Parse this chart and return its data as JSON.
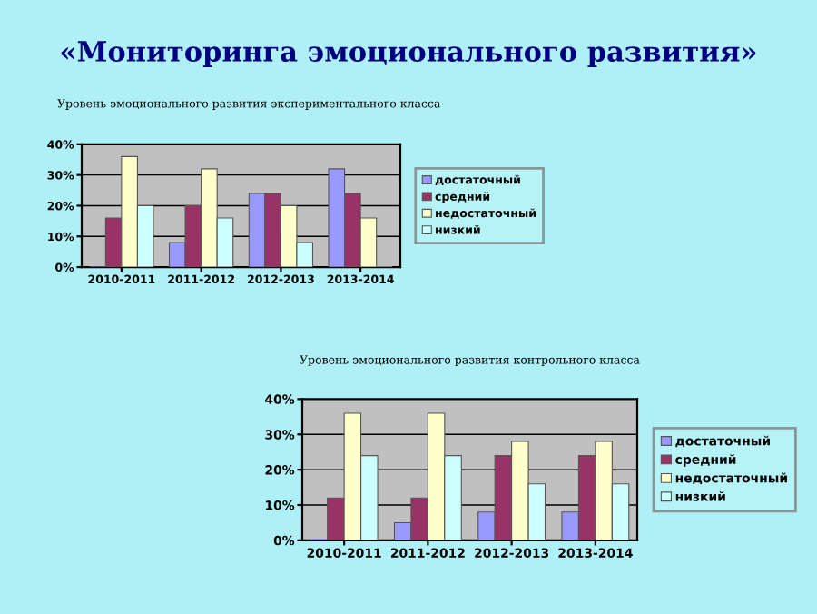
{
  "chart_data": [
    {
      "type": "bar",
      "title": "«Мониторинга эмоционального развития»",
      "subtitle": "Уровень эмоционального развития экспериментального класса",
      "categories": [
        "2010-2011",
        "2011-2012",
        "2012-2013",
        "2013-2014"
      ],
      "series": [
        {
          "name": "достаточный",
          "color": "#9999ff",
          "values": [
            0,
            8,
            24,
            32
          ]
        },
        {
          "name": "средний",
          "color": "#993366",
          "values": [
            16,
            20,
            24,
            24
          ]
        },
        {
          "name": "недостаточный",
          "color": "#ffffcc",
          "values": [
            36,
            32,
            20,
            16
          ]
        },
        {
          "name": "низкий",
          "color": "#ccffff",
          "values": [
            20,
            16,
            8,
            0
          ]
        }
      ],
      "ylim": [
        0,
        40
      ],
      "yticks": [
        {
          "value": 0,
          "label": "0%"
        },
        {
          "value": 10,
          "label": "10%"
        },
        {
          "value": 20,
          "label": "20%"
        },
        {
          "value": 30,
          "label": "30%"
        },
        {
          "value": 40,
          "label": "40%"
        }
      ],
      "grid": "y",
      "legend": "right"
    },
    {
      "type": "bar",
      "title": "Уровень эмоционального развития контрольного класса",
      "categories": [
        "2010-2011",
        "2011-2012",
        "2012-2013",
        "2013-2014"
      ],
      "series": [
        {
          "name": "достаточный",
          "color": "#9999ff",
          "values": [
            0,
            5,
            8,
            8
          ]
        },
        {
          "name": "средний",
          "color": "#993366",
          "values": [
            12,
            12,
            24,
            24
          ]
        },
        {
          "name": "недостаточный",
          "color": "#ffffcc",
          "values": [
            36,
            36,
            28,
            28
          ]
        },
        {
          "name": "низкий",
          "color": "#ccffff",
          "values": [
            24,
            24,
            16,
            16
          ]
        }
      ],
      "ylim": [
        0,
        40
      ],
      "yticks": [
        {
          "value": 0,
          "label": "0%"
        },
        {
          "value": 10,
          "label": "10%"
        },
        {
          "value": 20,
          "label": "20%"
        },
        {
          "value": 30,
          "label": "30%"
        },
        {
          "value": 40,
          "label": "40%"
        }
      ],
      "grid": "y",
      "legend": "right"
    }
  ]
}
